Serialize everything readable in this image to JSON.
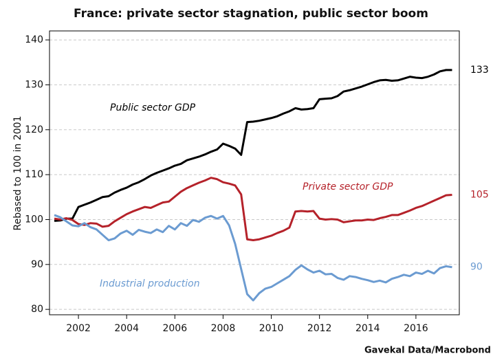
{
  "chart_data": {
    "type": "line",
    "title": "France: private sector stagnation, public sector boom",
    "y_label": "Rebased to 100 in 2001",
    "source": "Gavekal Data/Macrobond",
    "x": [
      2001,
      2001.25,
      2001.5,
      2001.75,
      2002,
      2002.25,
      2002.5,
      2002.75,
      2003,
      2003.25,
      2003.5,
      2003.75,
      2004,
      2004.25,
      2004.5,
      2004.75,
      2005,
      2005.25,
      2005.5,
      2005.75,
      2006,
      2006.25,
      2006.5,
      2006.75,
      2007,
      2007.25,
      2007.5,
      2007.75,
      2008,
      2008.25,
      2008.5,
      2008.75,
      2009,
      2009.25,
      2009.5,
      2009.75,
      2010,
      2010.25,
      2010.5,
      2010.75,
      2011,
      2011.25,
      2011.5,
      2011.75,
      2012,
      2012.25,
      2012.5,
      2012.75,
      2013,
      2013.25,
      2013.5,
      2013.75,
      2014,
      2014.25,
      2014.5,
      2014.75,
      2015,
      2015.25,
      2015.5,
      2015.75,
      2016,
      2016.25,
      2016.5,
      2016.75,
      2017,
      2017.25,
      2017.5
    ],
    "series": [
      {
        "name": "Public sector GDP",
        "color": "#000000",
        "end_label": "133",
        "values": [
          99.7,
          99.8,
          100.2,
          100.2,
          102.8,
          103.3,
          103.8,
          104.4,
          105.0,
          105.2,
          106.0,
          106.6,
          107.1,
          107.8,
          108.3,
          109.0,
          109.8,
          110.4,
          110.9,
          111.4,
          112.0,
          112.4,
          113.2,
          113.6,
          114.0,
          114.5,
          115.1,
          115.6,
          116.9,
          116.4,
          115.8,
          114.4,
          121.7,
          121.8,
          122.0,
          122.3,
          122.6,
          123.0,
          123.6,
          124.1,
          124.8,
          124.5,
          124.6,
          124.8,
          126.8,
          126.9,
          127.0,
          127.5,
          128.5,
          128.8,
          129.2,
          129.6,
          130.1,
          130.6,
          131.0,
          131.1,
          130.9,
          131.0,
          131.4,
          131.8,
          131.6,
          131.5,
          131.8,
          132.3,
          133.0,
          133.3,
          133.3
        ]
      },
      {
        "name": "Private sector GDP",
        "color": "#b5222a",
        "end_label": "105",
        "values": [
          100.2,
          100.0,
          100.3,
          99.9,
          99.0,
          98.8,
          99.2,
          99.1,
          98.4,
          98.6,
          99.6,
          100.4,
          101.2,
          101.8,
          102.3,
          102.8,
          102.6,
          103.2,
          103.8,
          104.0,
          105.1,
          106.2,
          107.0,
          107.6,
          108.2,
          108.7,
          109.3,
          109.0,
          108.3,
          108.0,
          107.6,
          105.6,
          95.6,
          95.4,
          95.6,
          96.0,
          96.4,
          97.0,
          97.5,
          98.2,
          101.8,
          101.9,
          101.8,
          101.9,
          100.2,
          100.0,
          100.1,
          100.0,
          99.4,
          99.6,
          99.8,
          99.8,
          100.0,
          99.9,
          100.3,
          100.6,
          101.0,
          101.0,
          101.5,
          102.0,
          102.6,
          103.0,
          103.6,
          104.2,
          104.8,
          105.4,
          105.5
        ]
      },
      {
        "name": "Industrial production",
        "color": "#6b9bd1",
        "end_label": "90",
        "values": [
          101.0,
          100.5,
          99.6,
          98.7,
          98.5,
          99.2,
          98.3,
          97.8,
          96.6,
          95.4,
          95.8,
          96.9,
          97.5,
          96.6,
          97.7,
          97.3,
          97.0,
          97.8,
          97.2,
          98.6,
          97.8,
          99.2,
          98.6,
          99.9,
          99.5,
          100.4,
          100.8,
          100.2,
          100.8,
          98.7,
          94.6,
          89.0,
          83.4,
          82.0,
          83.6,
          84.6,
          85.0,
          85.8,
          86.6,
          87.4,
          88.8,
          89.8,
          88.9,
          88.2,
          88.6,
          87.8,
          87.9,
          87.0,
          86.6,
          87.4,
          87.2,
          86.8,
          86.5,
          86.1,
          86.4,
          86.0,
          86.8,
          87.2,
          87.7,
          87.4,
          88.2,
          87.9,
          88.6,
          88.0,
          89.2,
          89.6,
          89.4
        ]
      }
    ],
    "xlim": [
      2000.8,
      2017.8
    ],
    "xticks": [
      2002,
      2004,
      2006,
      2008,
      2010,
      2012,
      2014,
      2016
    ],
    "ylim": [
      78.8,
      142
    ],
    "yticks": [
      80,
      90,
      100,
      110,
      120,
      130,
      140
    ],
    "grid": true
  }
}
